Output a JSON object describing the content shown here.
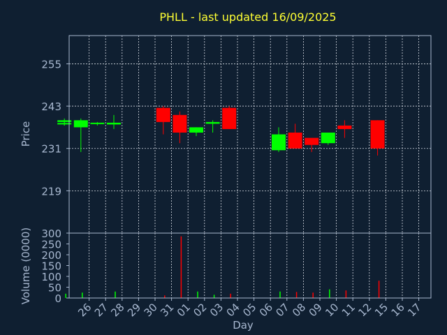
{
  "chart_data": {
    "type": "candlestick",
    "title": "PHLL - last updated 16/09/2025",
    "xlabel": "Day",
    "price_axis": {
      "label": "Price",
      "ylim": [
        207,
        263
      ],
      "ticks": [
        219,
        231,
        243,
        255
      ]
    },
    "volume_axis": {
      "label": "Volume (0000)",
      "ylim": [
        0,
        300
      ],
      "ticks": [
        0,
        50,
        100,
        150,
        200,
        250,
        300
      ]
    },
    "x_ticks": [
      "26",
      "27",
      "28",
      "29",
      "30",
      "31",
      "01",
      "02",
      "03",
      "04",
      "05",
      "06",
      "07",
      "08",
      "09",
      "10",
      "11",
      "12",
      "15",
      "16",
      "17"
    ],
    "grid": true,
    "colors": {
      "background": "#0f1f31",
      "up": "#00ff00",
      "down": "#ff0000",
      "title": "#ffff33",
      "text": "#a8b8d0"
    },
    "candles": [
      {
        "date": "25",
        "open": 238.0,
        "high": 238.5,
        "low": 237.5,
        "close": 238.2,
        "volume": 0
      },
      {
        "date": "26",
        "open": 237.0,
        "high": 239.5,
        "low": 230.0,
        "close": 239.0,
        "volume": 25
      },
      {
        "date": "27",
        "open": 238.0,
        "high": 238.5,
        "low": 237.5,
        "close": 238.3,
        "volume": 0
      },
      {
        "date": "28",
        "open": 237.8,
        "high": 240.5,
        "low": 236.5,
        "close": 238.3,
        "volume": 30
      },
      {
        "date": "31",
        "open": 242.5,
        "high": 243.0,
        "low": 235.0,
        "close": 238.5,
        "volume": 12
      },
      {
        "date": "01",
        "open": 240.5,
        "high": 241.5,
        "low": 232.5,
        "close": 235.5,
        "volume": 285
      },
      {
        "date": "02",
        "open": 235.5,
        "high": 237.0,
        "low": 234.5,
        "close": 237.0,
        "volume": 30
      },
      {
        "date": "03",
        "open": 238.0,
        "high": 239.0,
        "low": 235.5,
        "close": 238.5,
        "volume": 15
      },
      {
        "date": "04",
        "open": 242.5,
        "high": 243.0,
        "low": 236.5,
        "close": 236.5,
        "volume": 20
      },
      {
        "date": "07",
        "open": 230.5,
        "high": 237.0,
        "low": 230.0,
        "close": 235.0,
        "volume": 30
      },
      {
        "date": "08",
        "open": 235.5,
        "high": 238.0,
        "low": 231.0,
        "close": 231.0,
        "volume": 28
      },
      {
        "date": "09",
        "open": 234.0,
        "high": 234.0,
        "low": 230.0,
        "close": 232.0,
        "volume": 25
      },
      {
        "date": "10",
        "open": 232.5,
        "high": 235.5,
        "low": 232.0,
        "close": 235.5,
        "volume": 40
      },
      {
        "date": "11",
        "open": 237.5,
        "high": 239.0,
        "low": 234.0,
        "close": 236.5,
        "volume": 35
      },
      {
        "date": "14",
        "open": 238.5,
        "high": 239.5,
        "low": 237.5,
        "close": 239.0,
        "volume": 20
      },
      {
        "date": "15",
        "open": 239.0,
        "high": 239.0,
        "low": 229.0,
        "close": 231.0,
        "volume": 80
      }
    ]
  }
}
